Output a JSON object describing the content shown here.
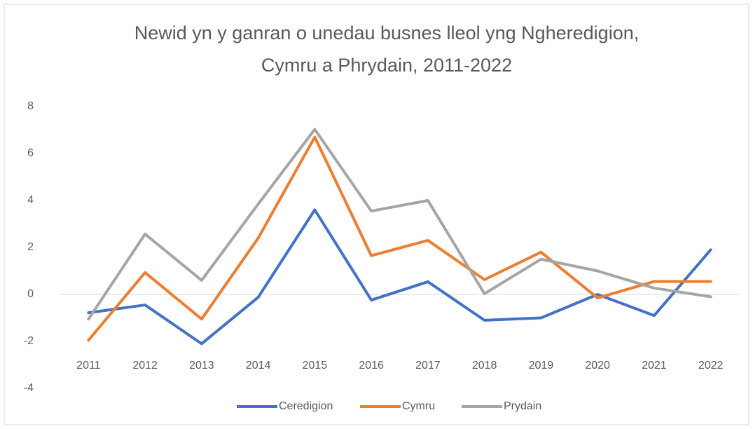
{
  "chart_data": {
    "type": "line",
    "title": [
      "Newid yn y ganran o unedau busnes lleol yng  Ngheredigion,",
      "Cymru a Phrydain, 2011-2022"
    ],
    "categories": [
      "2011",
      "2012",
      "2013",
      "2014",
      "2015",
      "2016",
      "2017",
      "2018",
      "2019",
      "2020",
      "2021",
      "2022"
    ],
    "series": [
      {
        "name": "Ceredigion",
        "color": "#4472c4",
        "values": [
          -0.78,
          -0.45,
          -2.1,
          -0.12,
          3.6,
          -0.24,
          0.54,
          -1.1,
          -1.0,
          0,
          -0.9,
          1.9
        ]
      },
      {
        "name": "Cymru",
        "color": "#ed7d31",
        "values": [
          -1.95,
          0.93,
          -1.05,
          2.4,
          6.7,
          1.65,
          2.3,
          0.63,
          1.8,
          -0.15,
          0.55,
          0.55
        ]
      },
      {
        "name": "Prydain",
        "color": "#a5a5a5",
        "values": [
          -1.05,
          2.57,
          0.6,
          3.85,
          7.03,
          3.55,
          4.0,
          0.03,
          1.5,
          1.0,
          0.27,
          -0.1
        ]
      }
    ],
    "ylim": [
      -4,
      8
    ],
    "yticks": [
      -4,
      -2,
      0,
      2,
      4,
      6,
      8
    ],
    "legend": "bottom"
  }
}
